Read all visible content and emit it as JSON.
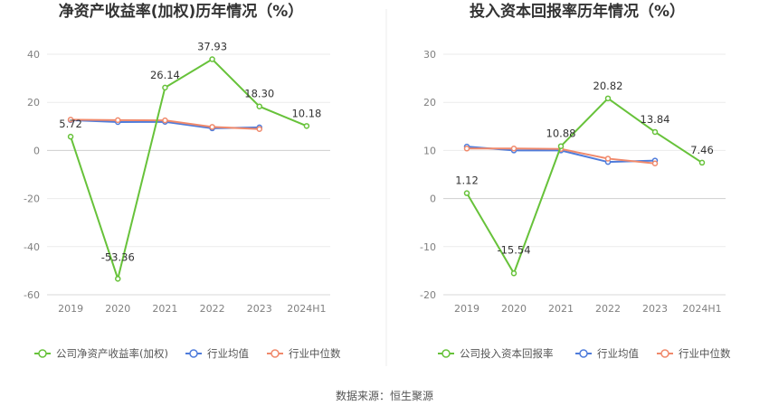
{
  "source_text": "数据来源：恒生聚源",
  "colors": {
    "company": "#67c23a",
    "avg": "#4f7cdb",
    "median": "#f0896b"
  },
  "chart_data": [
    {
      "type": "line",
      "title": "净资产收益率(加权)历年情况（%）",
      "categories": [
        "2019",
        "2020",
        "2021",
        "2022",
        "2023",
        "2024H1"
      ],
      "ylim": [
        -60,
        40
      ],
      "yticks": [
        40,
        20,
        0,
        -20,
        -40,
        -60
      ],
      "grid": true,
      "legend_position": "bottom",
      "series": [
        {
          "name": "公司净资产收益率(加权)",
          "values": [
            5.72,
            -53.36,
            26.14,
            37.93,
            18.3,
            10.18
          ],
          "labels": [
            "5.72",
            "-53.36",
            "26.14",
            "37.93",
            "18.30",
            "10.18"
          ]
        },
        {
          "name": "行业均值",
          "values": [
            12.6,
            11.8,
            11.9,
            9.2,
            9.6,
            null
          ]
        },
        {
          "name": "行业中位数",
          "values": [
            12.8,
            12.6,
            12.5,
            9.8,
            8.9,
            null
          ]
        }
      ]
    },
    {
      "type": "line",
      "title": "投入资本回报率历年情况（%）",
      "categories": [
        "2019",
        "2020",
        "2021",
        "2022",
        "2023",
        "2024H1"
      ],
      "ylim": [
        -20,
        30
      ],
      "yticks": [
        30,
        20,
        10,
        0,
        -10,
        -20
      ],
      "grid": true,
      "legend_position": "bottom",
      "series": [
        {
          "name": "公司投入资本回报率",
          "values": [
            1.12,
            -15.54,
            10.88,
            20.82,
            13.84,
            7.46
          ],
          "labels": [
            "1.12",
            "-15.54",
            "10.88",
            "20.82",
            "13.84",
            "7.46"
          ]
        },
        {
          "name": "行业均值",
          "values": [
            10.8,
            10.0,
            10.0,
            7.6,
            7.9,
            null
          ]
        },
        {
          "name": "行业中位数",
          "values": [
            10.4,
            10.4,
            10.3,
            8.3,
            7.3,
            null
          ]
        }
      ]
    }
  ]
}
